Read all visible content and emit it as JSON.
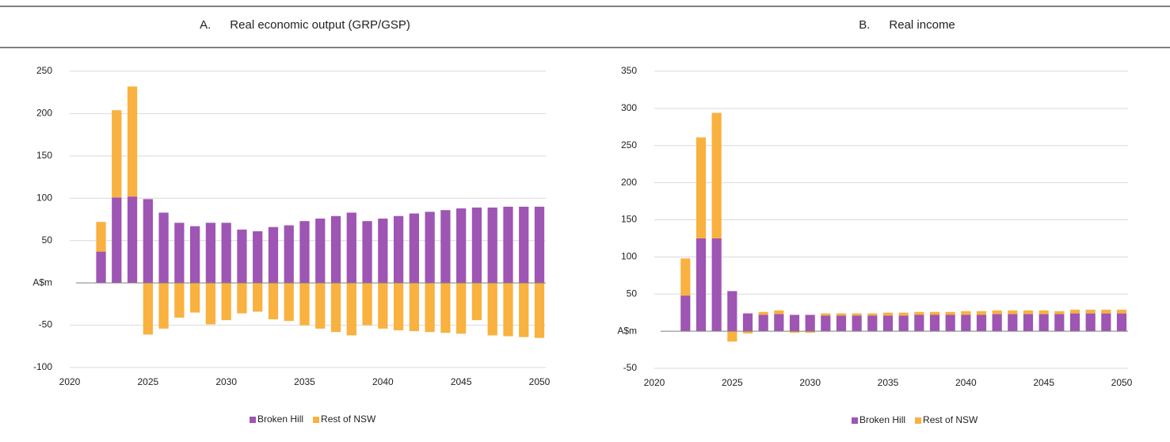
{
  "chart_data": [
    {
      "type": "bar",
      "stacked": true,
      "panel": "A.",
      "title": "Real economic output (GRP/GSP)",
      "x": [
        2022,
        2023,
        2024,
        2025,
        2026,
        2027,
        2028,
        2029,
        2030,
        2031,
        2032,
        2033,
        2034,
        2035,
        2036,
        2037,
        2038,
        2039,
        2040,
        2041,
        2042,
        2043,
        2044,
        2045,
        2046,
        2047,
        2048,
        2049,
        2050
      ],
      "series": [
        {
          "name": "Broken Hill",
          "color": "#9e55b3",
          "values": [
            37,
            101,
            102,
            99,
            83,
            71,
            67,
            71,
            71,
            63,
            61,
            66,
            68,
            73,
            76,
            79,
            83,
            73,
            76,
            79,
            82,
            84,
            86,
            88,
            89,
            89,
            90,
            90,
            90
          ]
        },
        {
          "name": "Rest of NSW",
          "color": "#f9b13f",
          "values": [
            35,
            103,
            130,
            -61,
            -54,
            -41,
            -35,
            -49,
            -44,
            -36,
            -34,
            -43,
            -45,
            -50,
            -54,
            -58,
            -62,
            -50,
            -54,
            -56,
            -57,
            -58,
            -59,
            -60,
            -44,
            -62,
            -63,
            -64,
            -65
          ]
        }
      ],
      "xlim": [
        2020,
        2050
      ],
      "xticks": [
        2020,
        2025,
        2030,
        2035,
        2040,
        2045,
        2050
      ],
      "ylim": [
        -100,
        250
      ],
      "yticks": [
        -100,
        -50,
        {
          "value": 0,
          "label": "A$m"
        },
        50,
        100,
        150,
        200,
        250
      ],
      "grid": true,
      "legend": "bottom"
    },
    {
      "type": "bar",
      "stacked": true,
      "panel": "B.",
      "title": "Real income",
      "x": [
        2022,
        2023,
        2024,
        2025,
        2026,
        2027,
        2028,
        2029,
        2030,
        2031,
        2032,
        2033,
        2034,
        2035,
        2036,
        2037,
        2038,
        2039,
        2040,
        2041,
        2042,
        2043,
        2044,
        2045,
        2046,
        2047,
        2048,
        2049,
        2050
      ],
      "series": [
        {
          "name": "Broken Hill",
          "color": "#9e55b3",
          "values": [
            48,
            125,
            125,
            54,
            24,
            22,
            23,
            22,
            22,
            21,
            21,
            21,
            21,
            21,
            21,
            22,
            22,
            22,
            22,
            22,
            23,
            23,
            23,
            23,
            23,
            24,
            24,
            24,
            24
          ]
        },
        {
          "name": "Rest of NSW",
          "color": "#f9b13f",
          "values": [
            50,
            136,
            169,
            -14,
            -3,
            4,
            5,
            -2,
            -2,
            3,
            3,
            3,
            3,
            4,
            4,
            4,
            4,
            4,
            5,
            5,
            5,
            5,
            5,
            5,
            4,
            5,
            5,
            5,
            5
          ]
        }
      ],
      "xlim": [
        2020,
        2050
      ],
      "xticks": [
        2020,
        2025,
        2030,
        2035,
        2040,
        2045,
        2050
      ],
      "ylim": [
        -50,
        350
      ],
      "yticks": [
        {
          "value": -50,
          "label": "-50"
        },
        {
          "value": 0,
          "label": "A$m"
        },
        50,
        100,
        150,
        200,
        250,
        300,
        350
      ],
      "grid": true,
      "legend": "bottom"
    }
  ]
}
